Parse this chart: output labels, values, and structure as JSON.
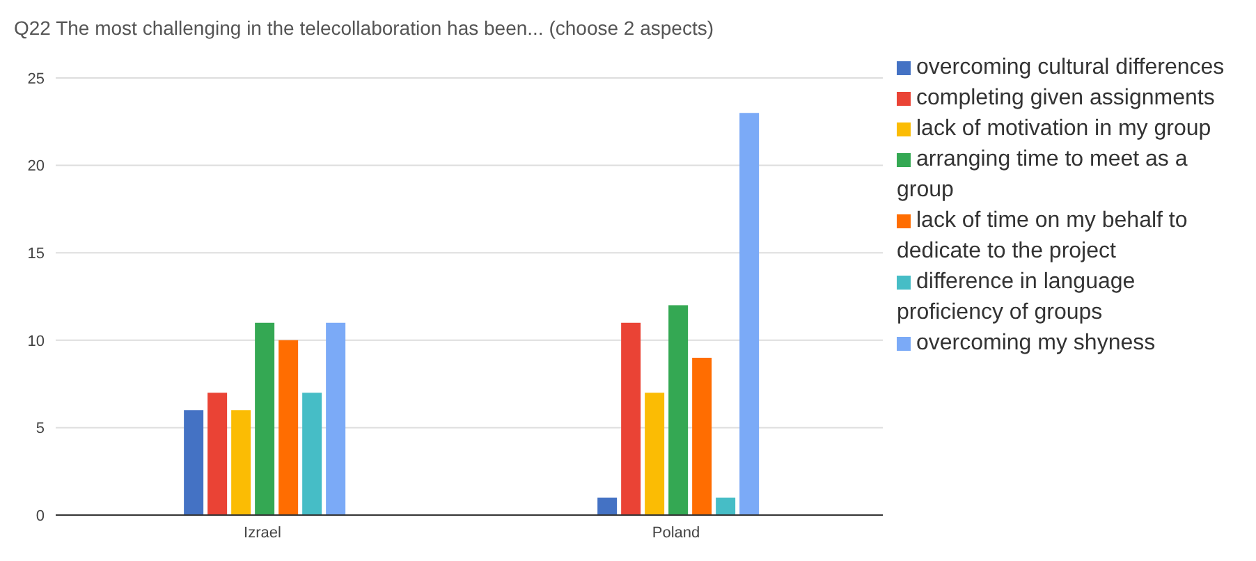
{
  "chart_data": {
    "type": "bar",
    "title": "Q22  The most challenging in the telecollaboration has been... (choose 2 aspects)",
    "categories": [
      "Izrael",
      "Poland"
    ],
    "series": [
      {
        "name": "overcoming cultural differences",
        "color": "#4472c4",
        "values": [
          6,
          1
        ]
      },
      {
        "name": "completing given assignments",
        "color": "#ea4335",
        "values": [
          7,
          11
        ]
      },
      {
        "name": "lack of motivation in my group",
        "color": "#fbbc04",
        "values": [
          6,
          7
        ]
      },
      {
        "name": "arranging time to meet as a group",
        "color": "#34a853",
        "values": [
          11,
          12
        ]
      },
      {
        "name": "lack of time on my behalf to dedicate to the project",
        "color": "#ff6d01",
        "values": [
          10,
          9
        ]
      },
      {
        "name": "difference in language proficiency of groups",
        "color": "#46bdc6",
        "values": [
          7,
          1
        ]
      },
      {
        "name": "overcoming my shyness",
        "color": "#7baaf7",
        "values": [
          11,
          23
        ]
      }
    ],
    "ylim": [
      0,
      25
    ],
    "yticks": [
      0,
      5,
      10,
      15,
      20,
      25
    ],
    "grid": "y",
    "legend": "right"
  }
}
